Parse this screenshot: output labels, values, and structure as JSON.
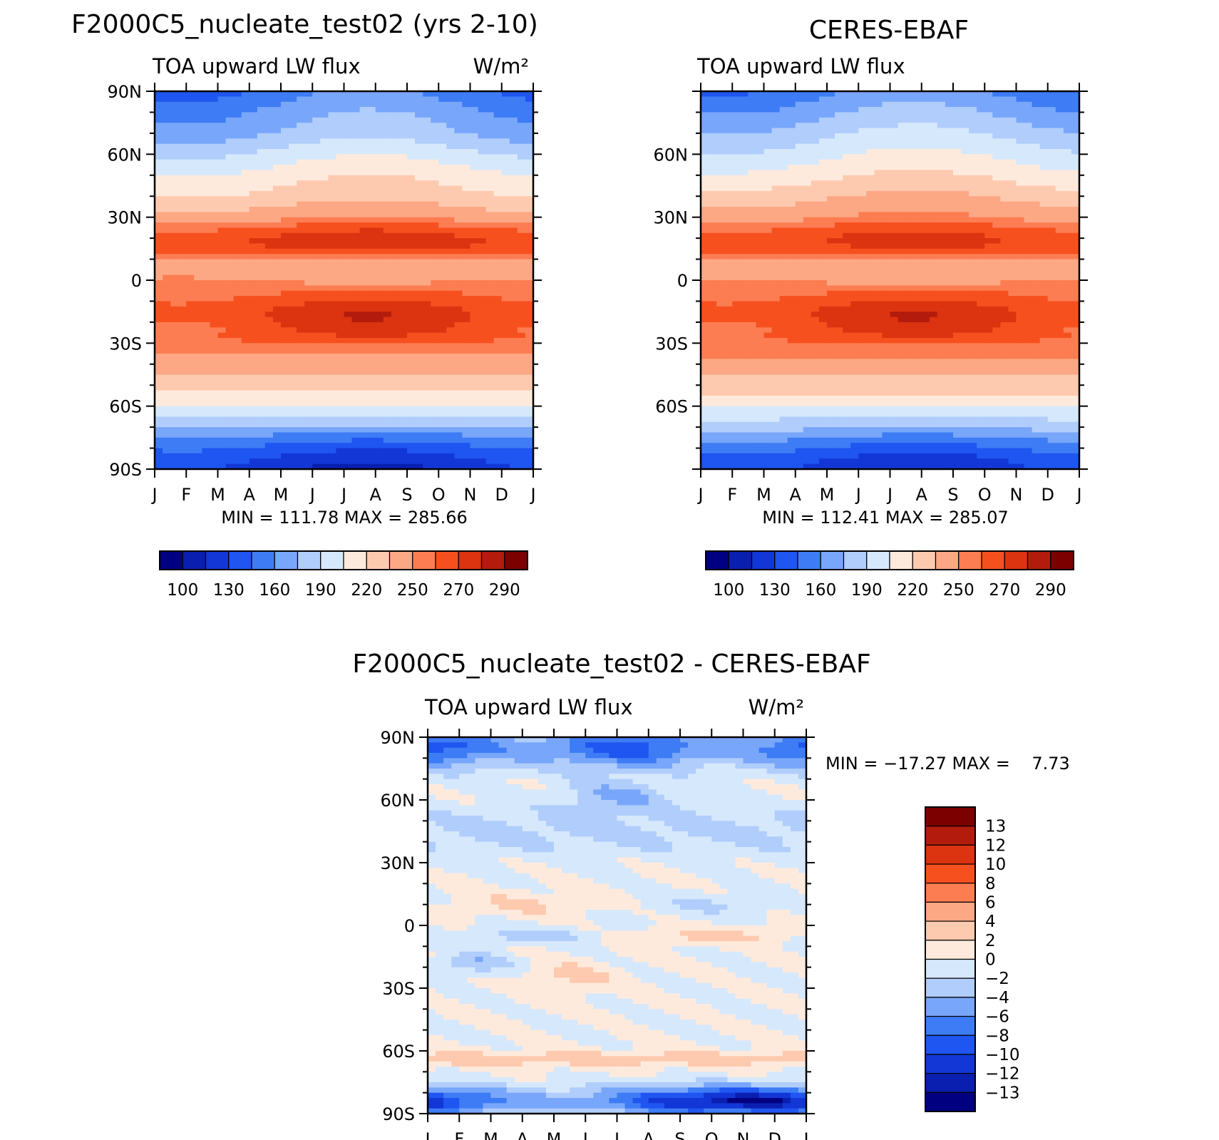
{
  "chart_data": [
    {
      "type": "heatmap",
      "id": "model",
      "title": "F2000C5_nucleate_test02 (yrs 2-10)",
      "subtitle_left": "TOA upward LW flux",
      "units": "W/m²",
      "x_ticks": [
        "J",
        "F",
        "M",
        "A",
        "M",
        "J",
        "J",
        "A",
        "S",
        "O",
        "N",
        "D",
        "J"
      ],
      "y_ticks": [
        "90N",
        "60N",
        "30N",
        "0",
        "30S",
        "60S",
        "90S"
      ],
      "y_values": [
        90,
        60,
        30,
        0,
        -30,
        -60,
        -90
      ],
      "ylim": [
        -90,
        90
      ],
      "stats": "MIN = 111.78 MAX = 285.66",
      "colorbar_labels": [
        "100",
        "130",
        "160",
        "190",
        "220",
        "250",
        "270",
        "290"
      ],
      "colorbar_colors": [
        "#000080",
        "#0a1fb0",
        "#1237d6",
        "#1f55f0",
        "#3d7cf5",
        "#78a6fa",
        "#b0cdfb",
        "#d6e8fc",
        "#feeadc",
        "#fdcab0",
        "#fca884",
        "#fc7d52",
        "#f7501f",
        "#dc3310",
        "#b31c0c",
        "#7d0000"
      ],
      "seasonal_model": "model",
      "lat_profile": [
        [
          90,
          150
        ],
        [
          80,
          165
        ],
        [
          70,
          175
        ],
        [
          60,
          195
        ],
        [
          50,
          212
        ],
        [
          40,
          225
        ],
        [
          30,
          245
        ],
        [
          25,
          262
        ],
        [
          20,
          272
        ],
        [
          15,
          270
        ],
        [
          10,
          250
        ],
        [
          5,
          235
        ],
        [
          0,
          250
        ],
        [
          -5,
          258
        ],
        [
          -10,
          265
        ],
        [
          -15,
          272
        ],
        [
          -20,
          270
        ],
        [
          -30,
          262
        ],
        [
          -40,
          242
        ],
        [
          -50,
          225
        ],
        [
          -55,
          215
        ],
        [
          -60,
          205
        ],
        [
          -65,
          190
        ],
        [
          -70,
          175
        ],
        [
          -75,
          155
        ],
        [
          -80,
          140
        ],
        [
          -85,
          128
        ],
        [
          -90,
          120
        ]
      ]
    },
    {
      "type": "heatmap",
      "id": "obs",
      "title": "CERES-EBAF",
      "subtitle_left": "TOA upward LW flux",
      "y_ticks": [
        "60N",
        "30N",
        "0",
        "30S",
        "60S"
      ],
      "y_values": [
        60,
        30,
        0,
        -30,
        -60
      ],
      "ylim": [
        -90,
        90
      ],
      "x_ticks": [
        "J",
        "F",
        "M",
        "A",
        "M",
        "J",
        "J",
        "A",
        "S",
        "O",
        "N",
        "D",
        "J"
      ],
      "stats": "MIN = 112.41 MAX = 285.07",
      "colorbar_labels": [
        "100",
        "130",
        "160",
        "190",
        "220",
        "250",
        "270",
        "290"
      ],
      "lat_profile": [
        [
          90,
          155
        ],
        [
          80,
          170
        ],
        [
          70,
          185
        ],
        [
          60,
          200
        ],
        [
          50,
          215
        ],
        [
          40,
          232
        ],
        [
          30,
          248
        ],
        [
          25,
          262
        ],
        [
          20,
          270
        ],
        [
          15,
          268
        ],
        [
          10,
          250
        ],
        [
          5,
          238
        ],
        [
          0,
          248
        ],
        [
          -5,
          258
        ],
        [
          -10,
          265
        ],
        [
          -15,
          272
        ],
        [
          -20,
          270
        ],
        [
          -30,
          262
        ],
        [
          -40,
          245
        ],
        [
          -50,
          228
        ],
        [
          -55,
          218
        ],
        [
          -60,
          206
        ],
        [
          -65,
          192
        ],
        [
          -70,
          178
        ],
        [
          -75,
          160
        ],
        [
          -80,
          145
        ],
        [
          -85,
          132
        ],
        [
          -90,
          125
        ]
      ]
    },
    {
      "type": "heatmap",
      "id": "diff",
      "title": "F2000C5_nucleate_test02 - CERES-EBAF",
      "subtitle_left": "TOA upward LW flux",
      "units": "W/m²",
      "x_ticks": [
        "J",
        "F",
        "M",
        "A",
        "M",
        "J",
        "J",
        "A",
        "S",
        "O",
        "N",
        "D",
        "J"
      ],
      "y_ticks": [
        "90N",
        "60N",
        "30N",
        "0",
        "30S",
        "60S",
        "90S"
      ],
      "y_values": [
        90,
        60,
        30,
        0,
        -30,
        -60,
        -90
      ],
      "ylim": [
        -90,
        90
      ],
      "stats": "MIN = −17.27 MAX =    7.73",
      "colorbar_labels": [
        "13",
        "12",
        "10",
        "8",
        "6",
        "4",
        "2",
        "0",
        "−2",
        "−4",
        "−6",
        "−8",
        "−10",
        "−12",
        "−13"
      ],
      "colorbar_colors_top_to_bottom": [
        "#7d0000",
        "#b31c0c",
        "#dc3310",
        "#f7501f",
        "#fc7d52",
        "#fca884",
        "#fdcab0",
        "#feeadc",
        "#d6e8fc",
        "#b0cdfb",
        "#78a6fa",
        "#3d7cf5",
        "#1f55f0",
        "#1237d6",
        "#0a1fb0",
        "#000080"
      ]
    }
  ]
}
